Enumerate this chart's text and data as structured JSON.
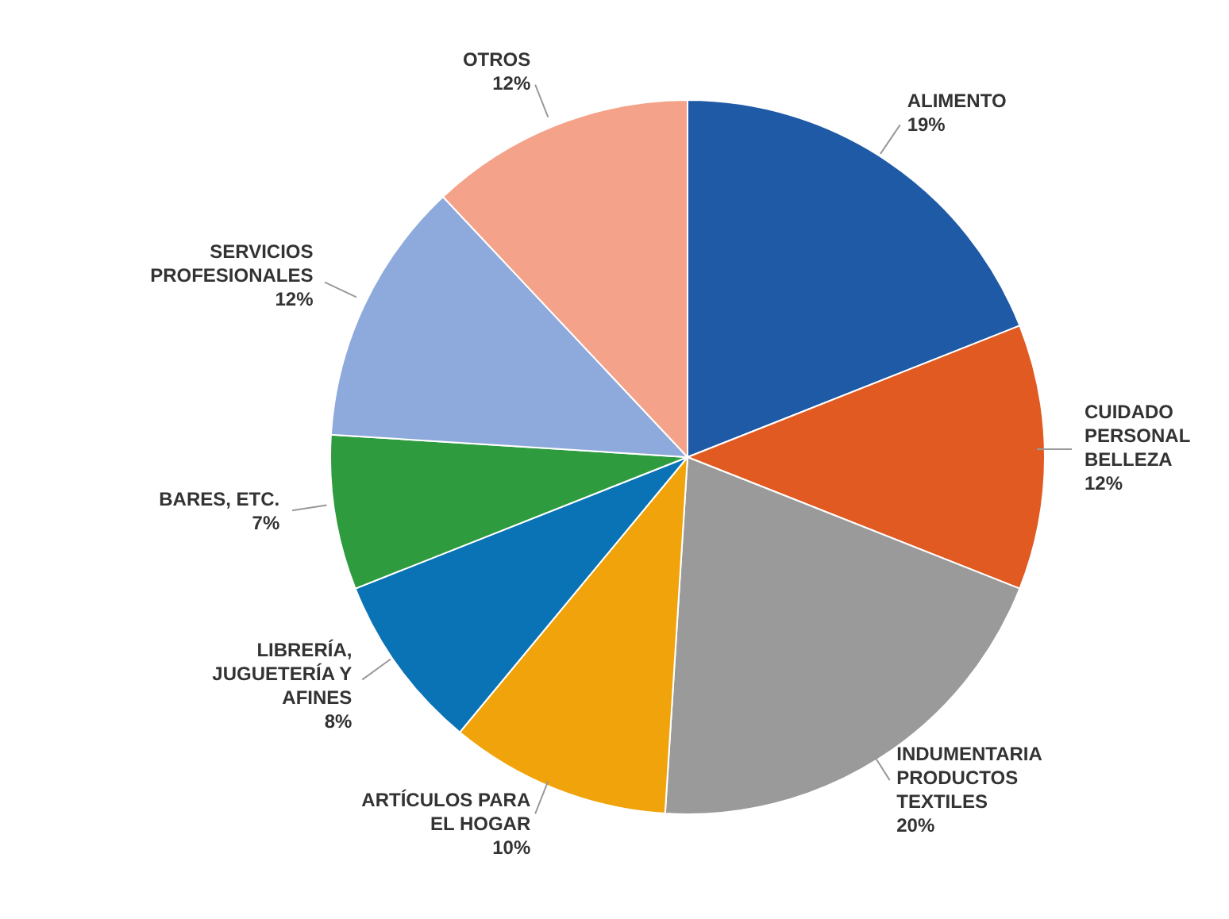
{
  "chart_data": {
    "type": "pie",
    "categories": [
      "ALIMENTO",
      "CUIDADO PERSONAL BELLEZA",
      "INDUMENTARIA PRODUCTOS TEXTILES",
      "ARTÍCULOS PARA EL HOGAR",
      "LIBRERÍA, JUGUETERÍA Y AFINES",
      "BARES, ETC.",
      "SERVICIOS PROFESIONALES",
      "OTROS"
    ],
    "values": [
      19,
      12,
      20,
      10,
      8,
      7,
      12,
      12
    ],
    "value_labels": [
      "19%",
      "12%",
      "20%",
      "10%",
      "8%",
      "7%",
      "12%",
      "12%"
    ],
    "colors": [
      "#1f5aa6",
      "#e05a22",
      "#9a9a9a",
      "#f0a30a",
      "#0a73b5",
      "#2e9b3f",
      "#8ea9db",
      "#f4a38a"
    ]
  }
}
